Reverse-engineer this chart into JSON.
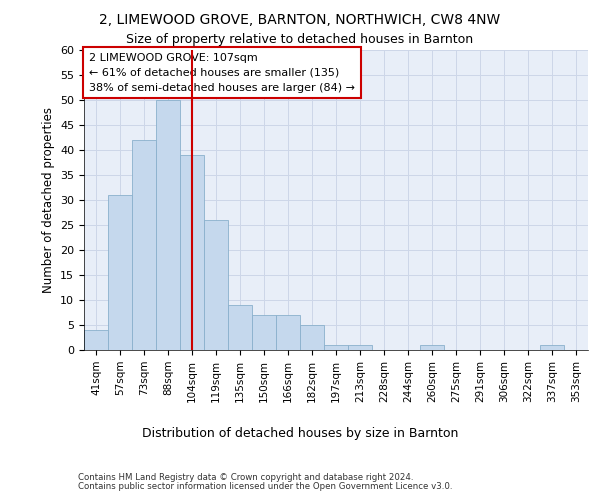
{
  "title1": "2, LIMEWOOD GROVE, BARNTON, NORTHWICH, CW8 4NW",
  "title2": "Size of property relative to detached houses in Barnton",
  "xlabel": "Distribution of detached houses by size in Barnton",
  "ylabel": "Number of detached properties",
  "categories": [
    "41sqm",
    "57sqm",
    "73sqm",
    "88sqm",
    "104sqm",
    "119sqm",
    "135sqm",
    "150sqm",
    "166sqm",
    "182sqm",
    "197sqm",
    "213sqm",
    "228sqm",
    "244sqm",
    "260sqm",
    "275sqm",
    "291sqm",
    "306sqm",
    "322sqm",
    "337sqm",
    "353sqm"
  ],
  "values": [
    4,
    31,
    42,
    50,
    39,
    26,
    9,
    7,
    7,
    5,
    1,
    1,
    0,
    0,
    1,
    0,
    0,
    0,
    0,
    1,
    0
  ],
  "bar_color": "#c5d8ed",
  "bar_edge_color": "#8ab0cc",
  "property_line_label": "2 LIMEWOOD GROVE: 107sqm",
  "annotation_line1": "← 61% of detached houses are smaller (135)",
  "annotation_line2": "38% of semi-detached houses are larger (84) →",
  "annotation_box_color": "#ffffff",
  "annotation_box_edge": "#cc0000",
  "vline_color": "#cc0000",
  "vline_x": 4.0,
  "ylim": [
    0,
    60
  ],
  "yticks": [
    0,
    5,
    10,
    15,
    20,
    25,
    30,
    35,
    40,
    45,
    50,
    55,
    60
  ],
  "grid_color": "#cdd6e8",
  "background_color": "#e8eef8",
  "footnote1": "Contains HM Land Registry data © Crown copyright and database right 2024.",
  "footnote2": "Contains public sector information licensed under the Open Government Licence v3.0."
}
